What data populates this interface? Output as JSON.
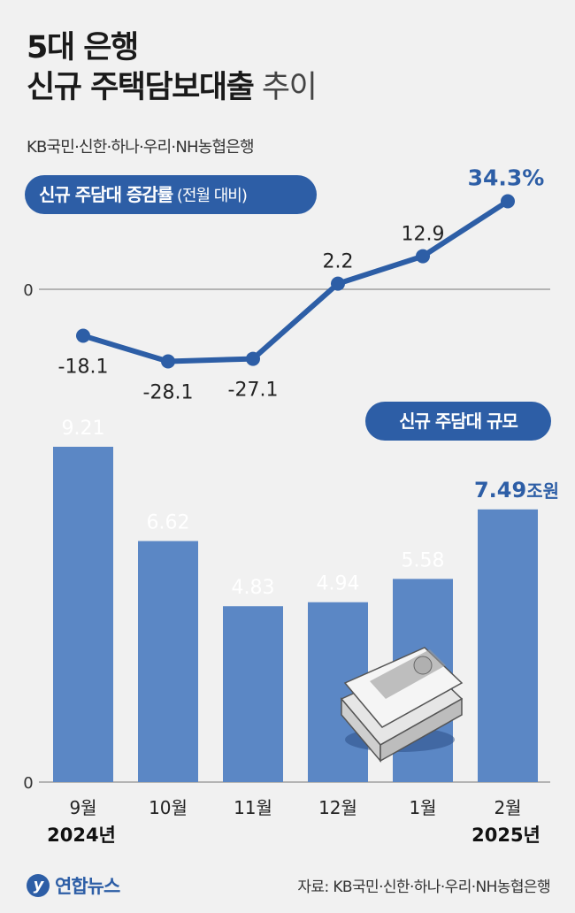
{
  "header": {
    "title_line1": "5대 은행",
    "title_line2_bold": "신규 주택담보대출",
    "title_line2_light": " 추이",
    "subtitle": "KB국민·신한·하나·우리·NH농협은행"
  },
  "line_panel_label": {
    "bold": "신규 주담대 증감률",
    "normal": " (전월 대비)"
  },
  "bar_panel_label": "신규 주담대 규모",
  "footer": {
    "logo": "연합뉴스",
    "source": "자료: KB국민·신한·하나·우리·NH농협은행"
  },
  "colors": {
    "accent": "#2d5ea6",
    "bar": "#5b87c5"
  },
  "chart_data": [
    {
      "type": "line",
      "title": "신규 주담대 증감률 (전월 대비)",
      "categories": [
        "9월",
        "10월",
        "11월",
        "12월",
        "1월",
        "2월"
      ],
      "values": [
        -18.1,
        -28.1,
        -27.1,
        2.2,
        12.9,
        34.3
      ],
      "labels": [
        "-18.1",
        "-28.1",
        "-27.1",
        "2.2",
        "12.9",
        "34.3%"
      ],
      "zero_label": "0"
    },
    {
      "type": "bar",
      "title": "신규 주담대 규모",
      "categories": [
        "9월",
        "10월",
        "11월",
        "12월",
        "1월",
        "2월"
      ],
      "year_labels": [
        "2024년",
        "",
        "",
        "",
        "",
        "2025년"
      ],
      "values": [
        9.21,
        6.62,
        4.83,
        4.94,
        5.58,
        7.49
      ],
      "labels": [
        "9.21",
        "6.62",
        "4.83",
        "4.94",
        "5.58",
        "7.49"
      ],
      "last_unit": "조원",
      "zero_label": "0",
      "ylim": [
        0,
        10.3
      ]
    }
  ]
}
